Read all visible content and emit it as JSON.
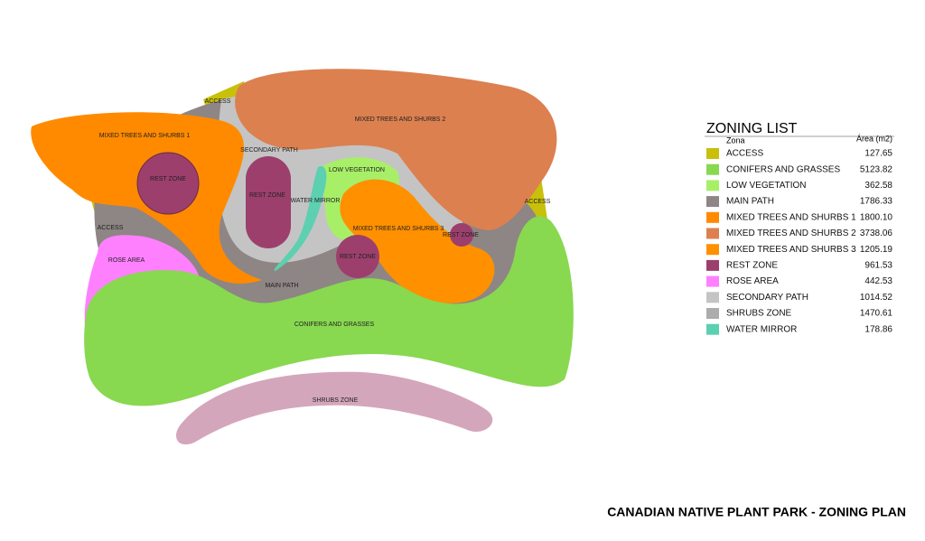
{
  "title": "CANADIAN NATIVE PLANT PARK - ZONING PLAN",
  "legend": {
    "title": "ZONING LIST",
    "header_zone": "Zona",
    "header_area": "Área (m2)",
    "items": [
      {
        "name": "ACCESS",
        "area": "127.65",
        "color": "#c8c00a"
      },
      {
        "name": "CONIFERS AND GRASSES",
        "area": "5123.82",
        "color": "#88d850"
      },
      {
        "name": "LOW VEGETATION",
        "area": "362.58",
        "color": "#a8ef68"
      },
      {
        "name": "MAIN PATH",
        "area": "1786.33",
        "color": "#8e8585"
      },
      {
        "name": "MIXED TREES AND SHURBS 1",
        "area": "1800.10",
        "color": "#ff8a00"
      },
      {
        "name": "MIXED TREES AND SHURBS 2",
        "area": "3738.06",
        "color": "#dc8050"
      },
      {
        "name": "MIXED TREES AND SHURBS 3",
        "area": "1205.19",
        "color": "#ff9000"
      },
      {
        "name": "REST ZONE",
        "area": "961.53",
        "color": "#9c3f6c"
      },
      {
        "name": "ROSE AREA",
        "area": "442.53",
        "color": "#ff80ff"
      },
      {
        "name": "SECONDARY PATH",
        "area": "1014.52",
        "color": "#c4c4c4"
      },
      {
        "name": "SHRUBS ZONE",
        "area": "1470.61",
        "color": "#acacac"
      },
      {
        "name": "WATER MIRROR",
        "area": "178.86",
        "color": "#5cd0b0"
      }
    ]
  },
  "map": {
    "labels": [
      "ACCESS",
      "MIXED TREES AND SHURBS 2",
      "MIXED TREES AND SHURBS 1",
      "SECONDARY PATH",
      "LOW VEGETATION",
      "REST ZONE",
      "REST ZONE",
      "WATER MIRROR",
      "ACCESS",
      "ACCESS",
      "MIXED TREES AND SHURBS 3",
      "REST ZONE",
      "REST ZONE",
      "ROSE AREA",
      "MAIN PATH",
      "CONIFERS AND GRASSES",
      "SHRUBS ZONE"
    ]
  }
}
